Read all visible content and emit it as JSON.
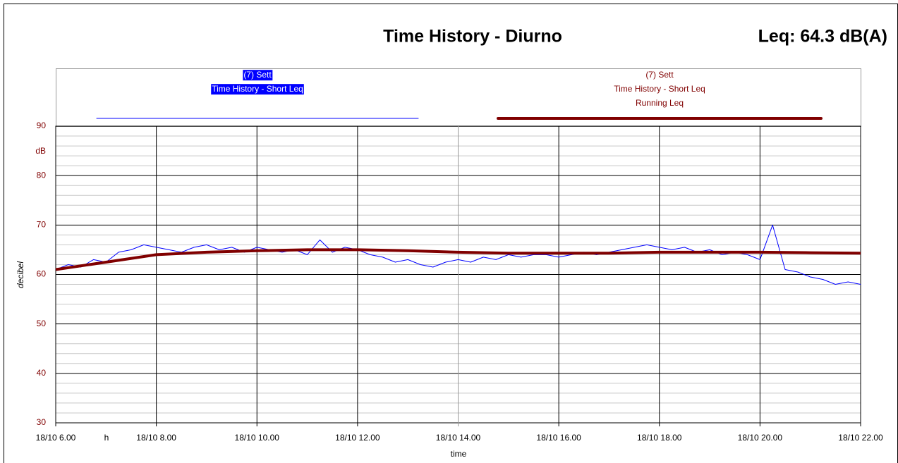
{
  "chart_data": {
    "type": "line",
    "title": "Time History - Diurno",
    "subtitle": "Leq: 64.3 dB(A)",
    "x_label": "time",
    "y_label": "decibel",
    "x_unit": "h",
    "y_unit": "dB",
    "xlim": [
      6,
      22
    ],
    "xticks": [
      {
        "value": 6,
        "label": "18/10 6.00"
      },
      {
        "value": 8,
        "label": "18/10 8.00"
      },
      {
        "value": 10,
        "label": "18/10 10.00"
      },
      {
        "value": 12,
        "label": "18/10 12.00"
      },
      {
        "value": 14,
        "label": "18/10 14.00"
      },
      {
        "value": 16,
        "label": "18/10 16.00"
      },
      {
        "value": 18,
        "label": "18/10 18.00"
      },
      {
        "value": 20,
        "label": "18/10 20.00"
      },
      {
        "value": 22,
        "label": "18/10 22.00"
      }
    ],
    "ylim": [
      30,
      90
    ],
    "yticks": [
      30,
      40,
      50,
      60,
      70,
      80,
      90
    ],
    "minor_yticks": [
      32,
      34,
      36,
      38,
      42,
      44,
      46,
      48,
      52,
      54,
      56,
      58,
      62,
      64,
      66,
      68,
      72,
      74,
      76,
      78,
      82,
      84,
      86,
      88
    ],
    "grid": true,
    "series": [
      {
        "name": [
          "(7) Sett",
          "Time History - Short Leq"
        ],
        "color": "#0000ff",
        "x": [
          6,
          6.25,
          6.5,
          6.75,
          7,
          7.25,
          7.5,
          7.75,
          8,
          8.25,
          8.5,
          8.75,
          9,
          9.25,
          9.5,
          9.75,
          10,
          10.25,
          10.5,
          10.75,
          11,
          11.25,
          11.5,
          11.75,
          12,
          12.25,
          12.5,
          12.75,
          13,
          13.25,
          13.5,
          13.75,
          14,
          14.25,
          14.5,
          14.75,
          15,
          15.25,
          15.5,
          15.75,
          16,
          16.25,
          16.5,
          16.75,
          17,
          17.25,
          17.5,
          17.75,
          18,
          18.25,
          18.5,
          18.75,
          19,
          19.25,
          19.5,
          19.75,
          20,
          20.25,
          20.5,
          20.75,
          21,
          21.25,
          21.5,
          21.75,
          22
        ],
        "values": [
          61,
          62,
          61.5,
          63,
          62.5,
          64.5,
          65,
          66,
          65.5,
          65,
          64.5,
          65.5,
          66,
          65,
          65.5,
          64.5,
          65.5,
          65,
          64.5,
          65,
          64,
          67,
          64.5,
          65.5,
          65,
          64,
          63.5,
          62.5,
          63,
          62,
          61.5,
          62.5,
          63,
          62.5,
          63.5,
          63,
          64,
          63.5,
          64,
          64,
          63.5,
          64,
          64.5,
          64,
          64.5,
          65,
          65.5,
          66,
          65.5,
          65,
          65.5,
          64.5,
          65,
          64,
          64.5,
          64,
          63,
          70,
          61,
          60.5,
          59.5,
          59,
          58,
          58.5,
          58
        ]
      },
      {
        "name": [
          "(7) Sett",
          "Time History - Short Leq",
          "Running Leq"
        ],
        "color": "#800000",
        "x": [
          6,
          7,
          8,
          9,
          10,
          11,
          12,
          13,
          14,
          15,
          16,
          17,
          18,
          19,
          20,
          21,
          22
        ],
        "values": [
          61,
          62.5,
          64,
          64.5,
          64.8,
          65,
          65,
          64.8,
          64.5,
          64.3,
          64.3,
          64.3,
          64.5,
          64.5,
          64.5,
          64.4,
          64.3
        ]
      }
    ]
  }
}
